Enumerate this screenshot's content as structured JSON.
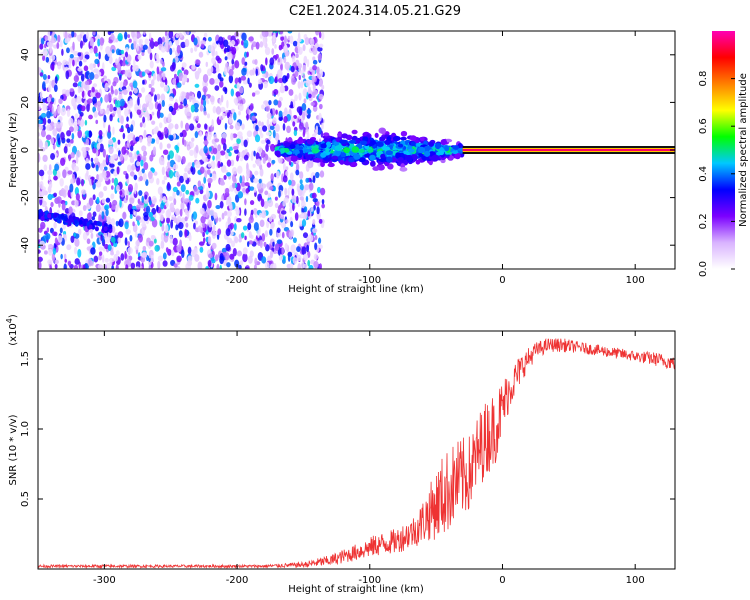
{
  "title": "C2E1.2024.314.05.21.G29",
  "chart_data": [
    {
      "type": "heatmap",
      "xlabel": "Height of straight line (km)",
      "ylabel": "Frequency (Hz)",
      "xlim": [
        -350,
        130
      ],
      "ylim": [
        -50,
        50
      ],
      "xticks": [
        -300,
        -200,
        -100,
        0,
        100
      ],
      "yticks": [
        -40,
        -20,
        0,
        20,
        40
      ],
      "colorbar": {
        "label": "Normalized spectral amplitude",
        "range": [
          0.0,
          1.0
        ],
        "ticks": [
          "0.0",
          "0.2",
          "0.4",
          "0.6",
          "0.8"
        ],
        "colormap": [
          "#ffffff",
          "#d9b3ff",
          "#7b00ff",
          "#0000ff",
          "#00c8ff",
          "#00ff00",
          "#ffff00",
          "#ff8000",
          "#ff0000",
          "#ff00b4"
        ]
      },
      "features": [
        {
          "name": "noise",
          "x_range": [
            -350,
            -135
          ],
          "y_range": [
            -50,
            50
          ],
          "amplitude": 0.15
        },
        {
          "name": "weak line",
          "x_range": [
            -350,
            -295
          ],
          "y_center_start": -27,
          "y_center_end": -33,
          "amplitude": 0.25
        },
        {
          "name": "tone",
          "x_range": [
            -170,
            -30
          ],
          "y_center": 0,
          "spread_hz": [
            3,
            10
          ],
          "amplitude": 0.45
        },
        {
          "name": "tone",
          "x_range": [
            -30,
            130
          ],
          "y_center": 0,
          "amplitude": 0.95
        }
      ]
    },
    {
      "type": "line",
      "xlabel": "Height of straight line (km)",
      "ylabel": "SNR (10 * v/v)",
      "y_multiplier": "(x10",
      "y_multiplier_exp": "4",
      "y_multiplier_close": ")",
      "xlim": [
        -350,
        130
      ],
      "ylim": [
        0,
        1.7
      ],
      "xticks": [
        -300,
        -200,
        -100,
        0,
        100
      ],
      "yticks": [
        "0.5",
        "1.0",
        "1.5"
      ],
      "line_color": "#ee3333",
      "x": [
        -350,
        -250,
        -180,
        -150,
        -130,
        -110,
        -95,
        -80,
        -65,
        -55,
        -45,
        -35,
        -25,
        -15,
        -5,
        5,
        15,
        25,
        35,
        45,
        60,
        80,
        100,
        115,
        130
      ],
      "y": [
        0.02,
        0.02,
        0.02,
        0.03,
        0.06,
        0.12,
        0.17,
        0.2,
        0.28,
        0.4,
        0.52,
        0.62,
        0.68,
        0.9,
        1.02,
        1.28,
        1.45,
        1.56,
        1.6,
        1.6,
        1.58,
        1.55,
        1.52,
        1.5,
        1.47
      ],
      "noise": [
        0.01,
        0.01,
        0.01,
        0.02,
        0.04,
        0.06,
        0.08,
        0.09,
        0.12,
        0.2,
        0.3,
        0.3,
        0.28,
        0.28,
        0.26,
        0.15,
        0.1,
        0.06,
        0.05,
        0.05,
        0.04,
        0.04,
        0.04,
        0.05,
        0.05
      ]
    }
  ]
}
